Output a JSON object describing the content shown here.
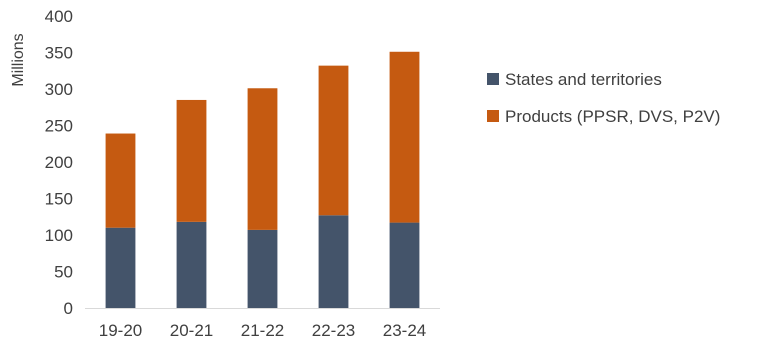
{
  "chart_data": {
    "type": "bar",
    "stacked": true,
    "title": "",
    "xlabel": "",
    "ylabel": "Millions",
    "ylim": [
      0,
      400
    ],
    "yticks": [
      0,
      50,
      100,
      150,
      200,
      250,
      300,
      350,
      400
    ],
    "grid": false,
    "legend_position": "right",
    "categories": [
      "19-20",
      "20-21",
      "21-22",
      "22-23",
      "23-24"
    ],
    "series": [
      {
        "name": "States and territories",
        "color": "#44546A",
        "values": [
          110,
          118,
          107,
          127,
          117
        ]
      },
      {
        "name": "Products (PPSR, DVS, P2V)",
        "color": "#C55A11",
        "values": [
          129,
          167,
          194,
          205,
          234
        ]
      }
    ]
  }
}
